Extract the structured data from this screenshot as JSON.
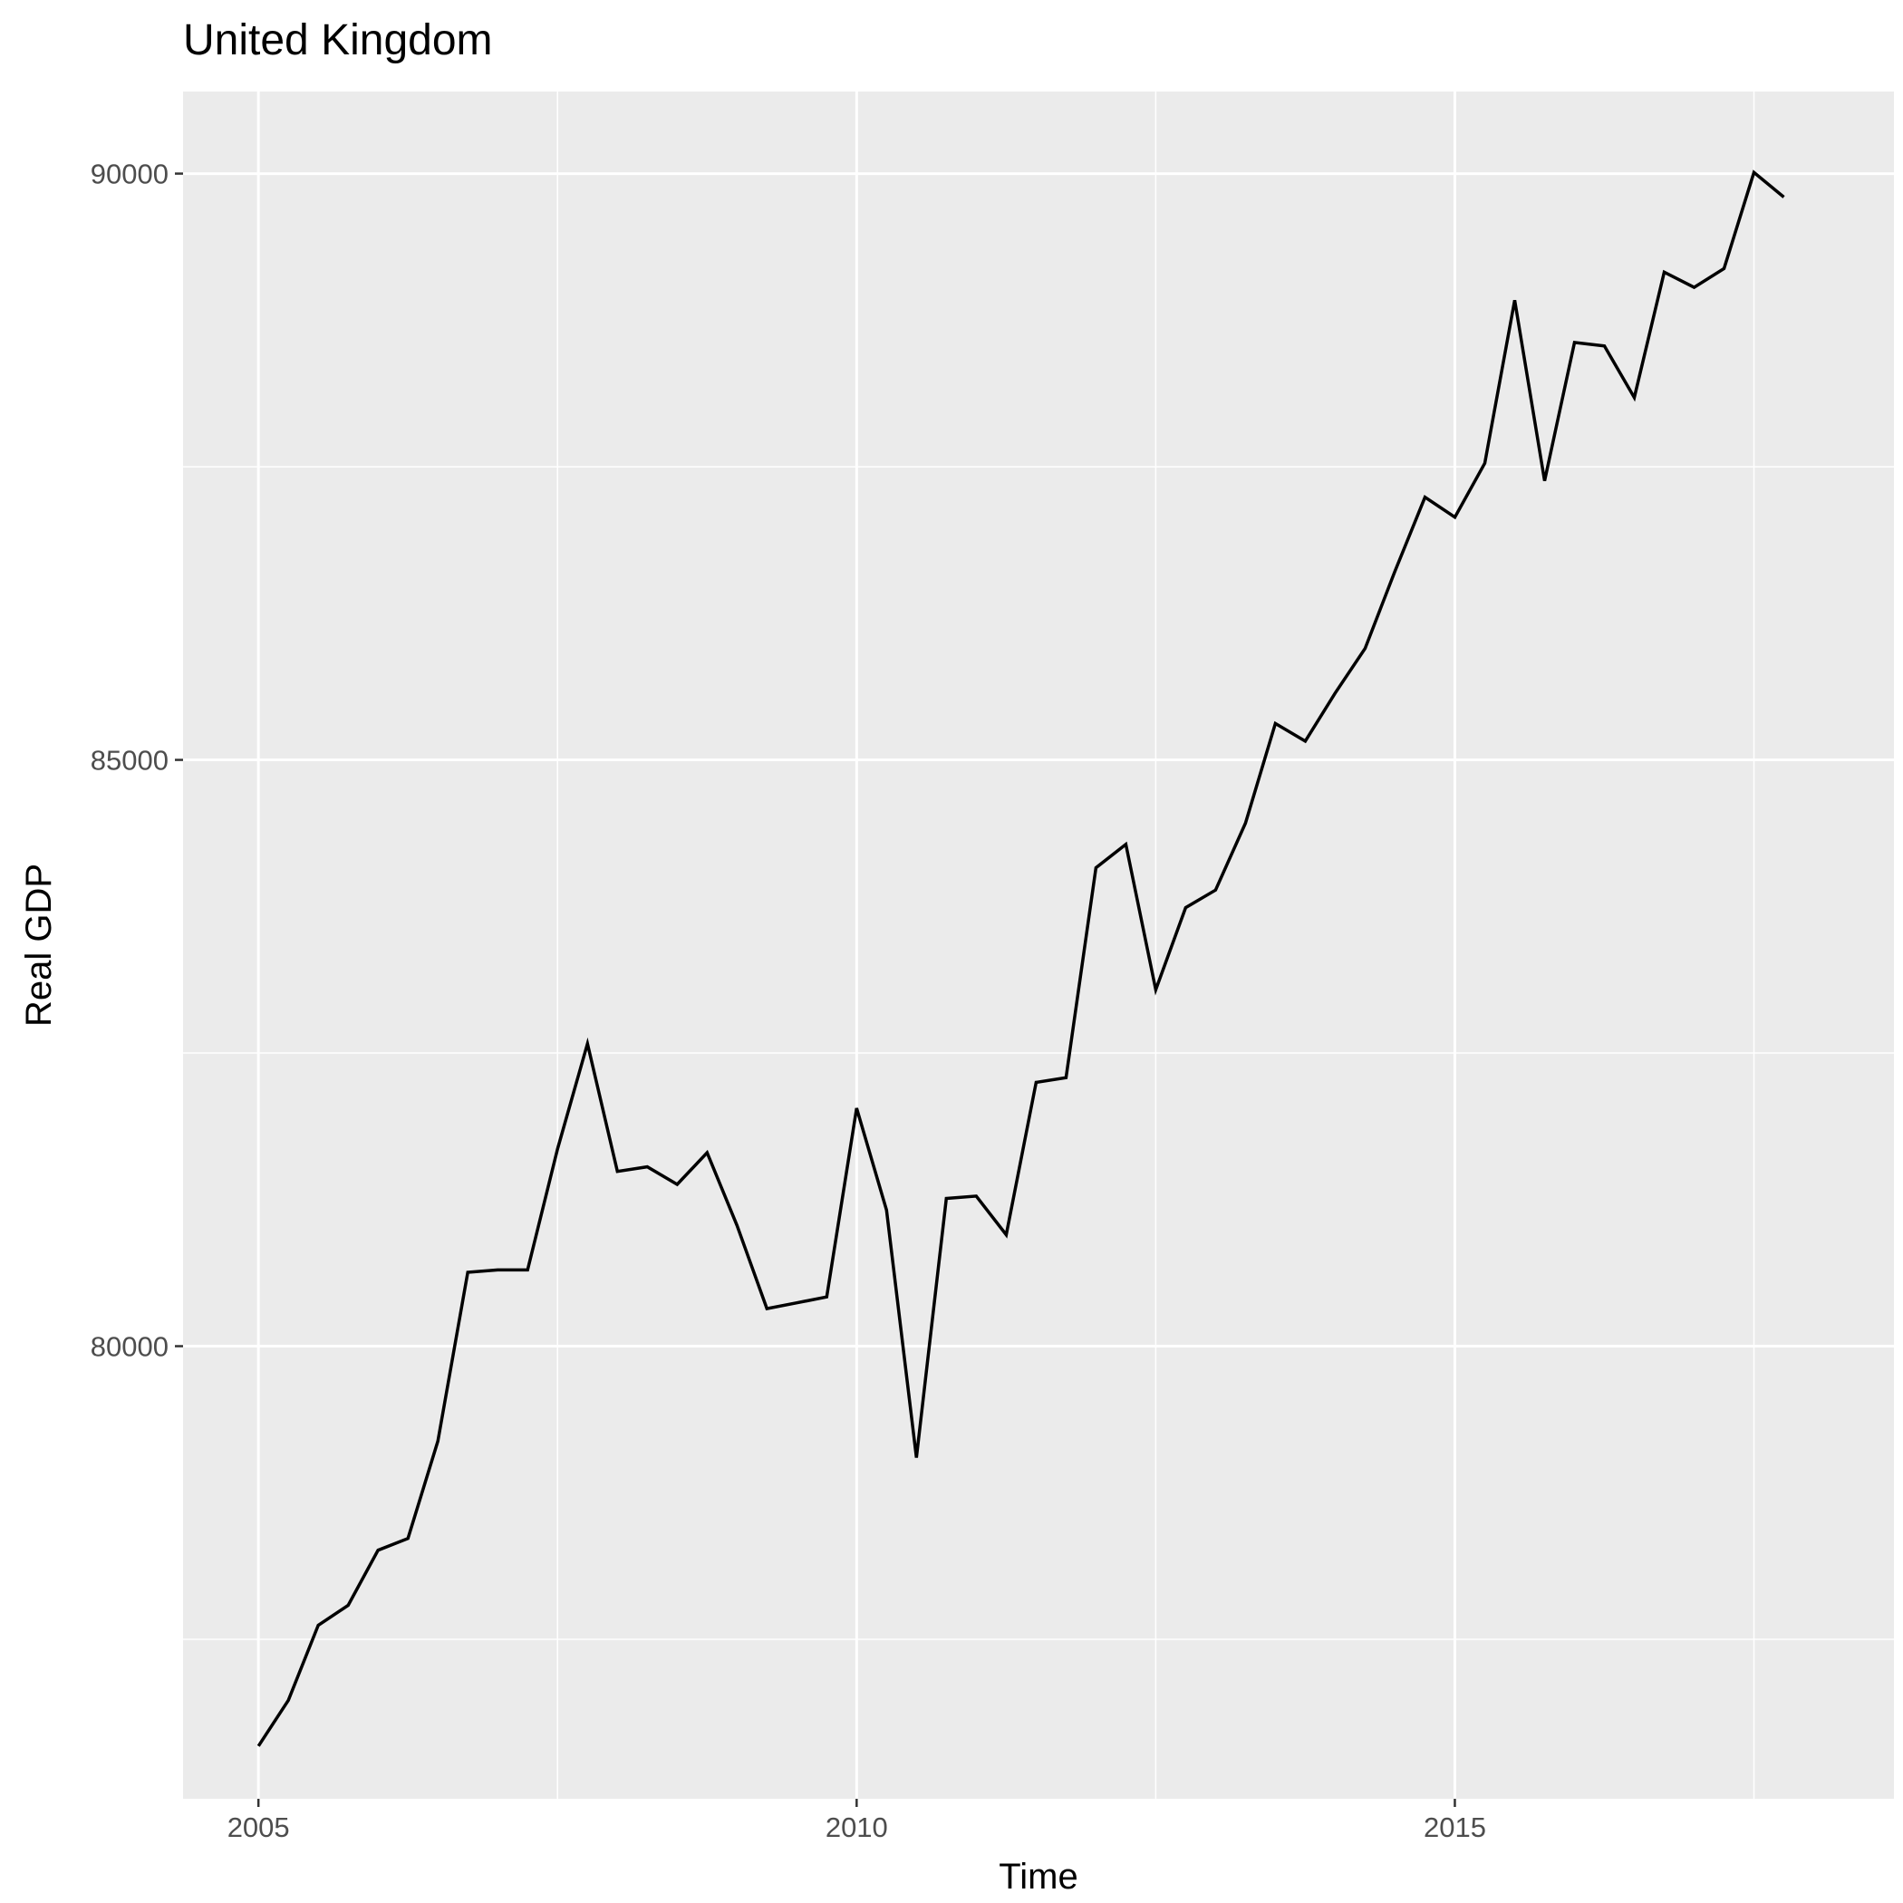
{
  "chart_data": {
    "type": "line",
    "title": "United Kingdom",
    "xlabel": "Time",
    "ylabel": "Real GDP",
    "xlim": [
      2004.37,
      2018.67
    ],
    "ylim": [
      76140,
      90700
    ],
    "x_ticks": [
      2005,
      2010,
      2015
    ],
    "x_tick_labels": [
      "2005",
      "2010",
      "2015"
    ],
    "y_ticks": [
      80000,
      85000,
      90000
    ],
    "y_tick_labels": [
      "80000",
      "85000",
      "90000"
    ],
    "grid": true,
    "legend": "none",
    "colors": {
      "panel": "#ebebeb",
      "grid": "#ffffff",
      "line": "#000000",
      "tick_text": "#4d4d4d"
    },
    "series": [
      {
        "x": [
          2005.0,
          2005.25,
          2005.5,
          2005.75,
          2006.0,
          2006.25,
          2006.5,
          2006.75,
          2007.0,
          2007.25,
          2007.5,
          2007.75,
          2008.0,
          2008.25,
          2008.5,
          2008.75,
          2009.0,
          2009.25,
          2009.5,
          2009.75,
          2010.0,
          2010.25,
          2010.5,
          2010.75,
          2011.0,
          2011.25,
          2011.5,
          2011.75,
          2012.0,
          2012.25,
          2012.5,
          2012.75,
          2013.0,
          2013.25,
          2013.5,
          2013.75,
          2014.0,
          2014.25,
          2014.5,
          2014.75,
          2015.0,
          2015.25,
          2015.5,
          2015.75,
          2016.0,
          2016.25,
          2016.5,
          2016.75,
          2017.0,
          2017.25,
          2017.5,
          2017.75
        ],
        "values": [
          76590,
          76980,
          77620,
          77790,
          78260,
          78360,
          79190,
          80630,
          80650,
          80650,
          81680,
          82580,
          81490,
          81530,
          81380,
          81650,
          81030,
          80320,
          80370,
          80420,
          82030,
          81160,
          79050,
          81260,
          81280,
          80950,
          82250,
          82290,
          84080,
          84280,
          83040,
          83740,
          83890,
          84460,
          85310,
          85160,
          85570,
          85950,
          86610,
          87240,
          87070,
          87530,
          88920,
          87380,
          88560,
          88530,
          88090,
          89160,
          89030,
          89190,
          90010,
          89800
        ]
      }
    ]
  }
}
